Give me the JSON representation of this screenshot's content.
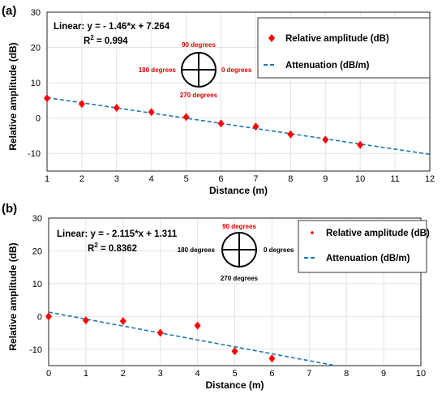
{
  "chart_data": [
    {
      "type": "scatter",
      "panel_label": "(a)",
      "xlabel": "Distance (m)",
      "ylabel": "Relative amplitude (dB)",
      "xlim": [
        1,
        12
      ],
      "ylim": [
        -15,
        30
      ],
      "xticks": [
        1,
        2,
        3,
        4,
        5,
        6,
        7,
        8,
        9,
        10,
        11,
        12
      ],
      "yticks": [
        -10,
        0,
        10,
        20,
        30
      ],
      "grid": true,
      "legend_position": "top-right",
      "series": [
        {
          "name": "Relative amplitude (dB)",
          "marker": "diamond",
          "color": "#ff0000",
          "x": [
            1,
            2,
            3,
            4,
            5,
            6,
            7,
            8,
            9,
            10
          ],
          "y": [
            5.6,
            4.0,
            2.9,
            1.7,
            0.3,
            -1.5,
            -2.4,
            -4.6,
            -6.1,
            -7.6
          ]
        },
        {
          "name": "Attenuation (dB/m)",
          "style": "dashed-line",
          "color": "#1f77b4",
          "slope": -1.46,
          "intercept": 7.264,
          "x_range": [
            1,
            12
          ]
        }
      ],
      "annotations": {
        "fit_label": "Linear:",
        "equation": "y = - 1.46*x + 7.264",
        "r2_label": "R",
        "r2_sup": "2",
        "r2_value": " = 0.994",
        "compass": {
          "top": "90 degrees",
          "left": "180 degrees",
          "right": "0 degrees",
          "bottom": "270 degrees"
        }
      }
    },
    {
      "type": "scatter",
      "panel_label": "(b)",
      "xlabel": "Distance (m)",
      "ylabel": "Relative amplitude (dB)",
      "xlim": [
        0,
        10
      ],
      "ylim": [
        -15,
        30
      ],
      "xticks": [
        0,
        1,
        2,
        3,
        4,
        5,
        6,
        7,
        8,
        9,
        10
      ],
      "yticks": [
        -10,
        0,
        10,
        20,
        30
      ],
      "grid": true,
      "legend_position": "top-right",
      "series": [
        {
          "name": "Relative amplitude (dB)",
          "marker": "diamond",
          "color": "#ff0000",
          "x": [
            0,
            1,
            2,
            3,
            4,
            5,
            6
          ],
          "y": [
            0.0,
            -1.2,
            -1.4,
            -5.0,
            -2.8,
            -10.6,
            -12.8
          ]
        },
        {
          "name": "Attenuation (dB/m)",
          "style": "dashed-line",
          "color": "#1f77b4",
          "slope": -2.115,
          "intercept": 1.311,
          "x_range": [
            0,
            7.7
          ]
        }
      ],
      "annotations": {
        "fit_label": "Linear:",
        "equation": "y = - 2.115*x + 1.311",
        "r2_label": "R",
        "r2_sup": "2",
        "r2_value": " = 0.8362",
        "compass": {
          "top": "90 degrees",
          "left": "180 degrees",
          "right": "0 degrees",
          "bottom": "270 degrees"
        }
      }
    }
  ],
  "colors": {
    "marker": "#ff0000",
    "fit_line": "#1f77b4",
    "compass_label_a": "#e00000",
    "compass_top_b": "#e00000",
    "compass_other_b": "#000000",
    "grid": "#e3e3e3"
  }
}
